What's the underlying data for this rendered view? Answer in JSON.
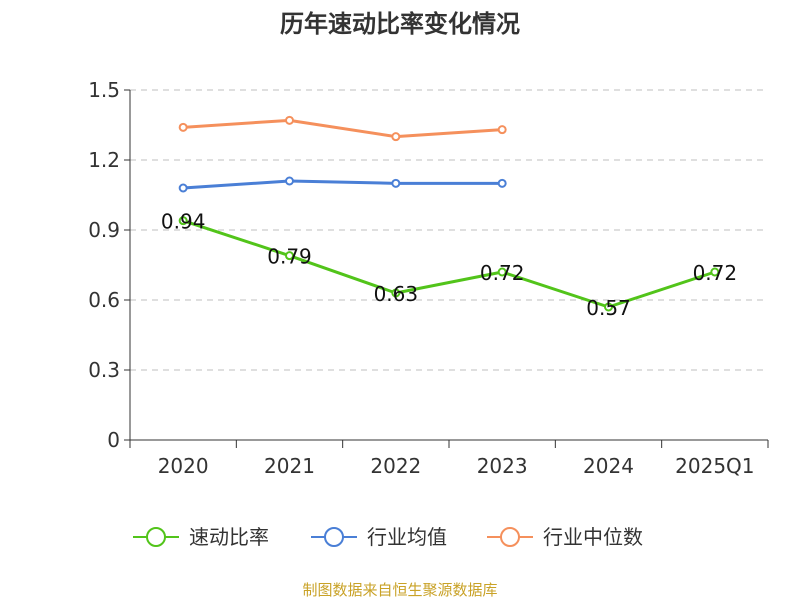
{
  "chart_data": {
    "type": "line",
    "title": "历年速动比率变化情况",
    "xlabel": "",
    "ylabel": "",
    "categories": [
      "2020",
      "2021",
      "2022",
      "2023",
      "2024",
      "2025Q1"
    ],
    "y_ticks": [
      "0",
      "0.3",
      "0.6",
      "0.9",
      "1.2",
      "1.5"
    ],
    "ylim": [
      0,
      1.5
    ],
    "grid": true,
    "legend_position": "bottom",
    "series": [
      {
        "name": "速动比率",
        "color": "#52c41a",
        "values": [
          0.94,
          0.79,
          0.63,
          0.72,
          0.57,
          0.72
        ],
        "labels": [
          "0.94",
          "0.79",
          "0.63",
          "0.72",
          "0.57",
          "0.72"
        ]
      },
      {
        "name": "行业均值",
        "color": "#4a7fd6",
        "values": [
          1.08,
          1.11,
          1.1,
          1.1,
          null,
          null
        ]
      },
      {
        "name": "行业中位数",
        "color": "#f5905c",
        "values": [
          1.34,
          1.37,
          1.3,
          1.33,
          null,
          null
        ]
      }
    ]
  },
  "footer": {
    "source": "制图数据来自恒生聚源数据库",
    "source_color": "#c9a227"
  }
}
